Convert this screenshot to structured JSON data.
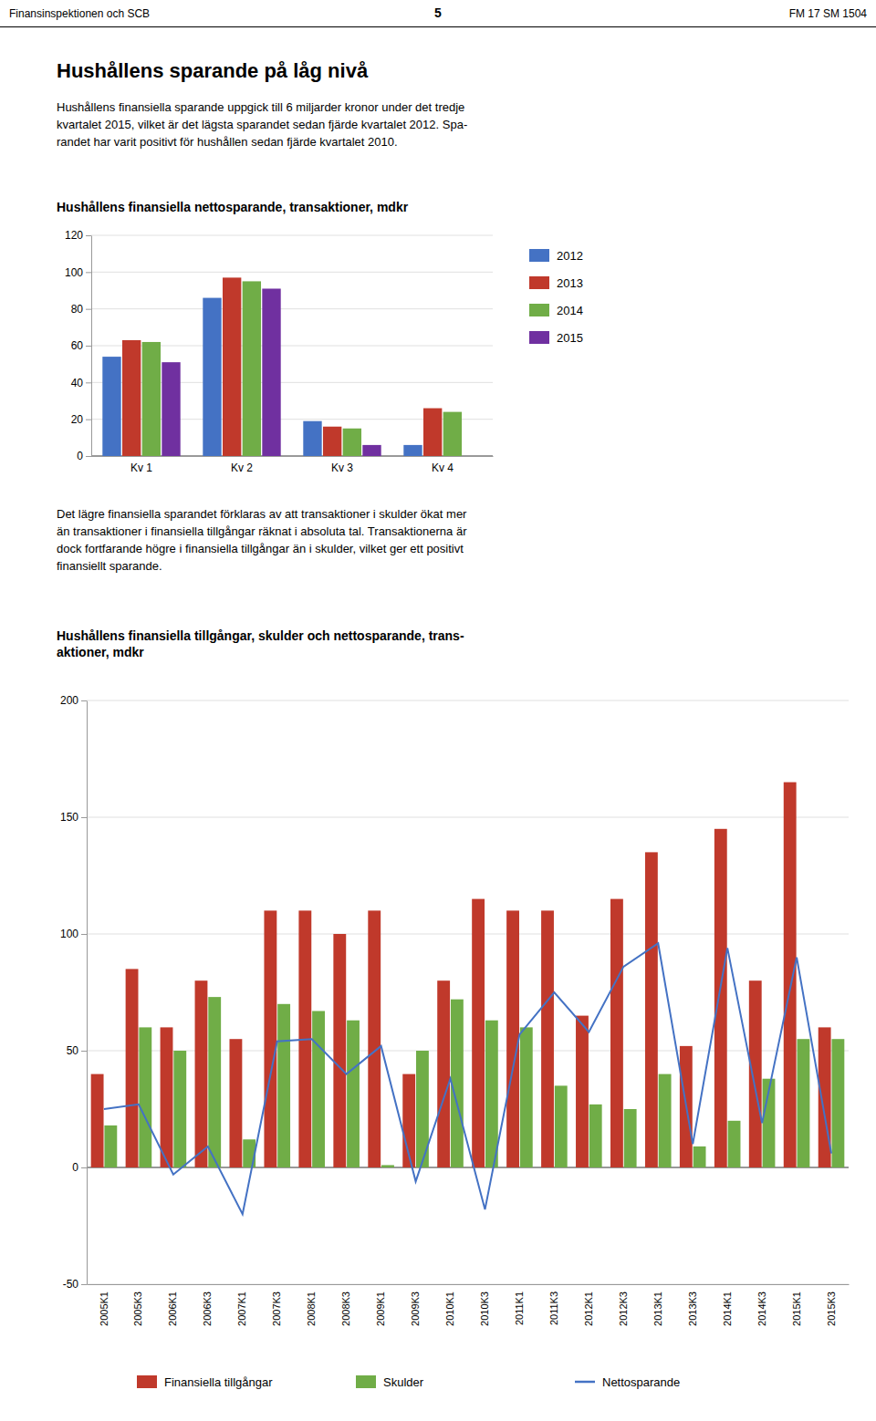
{
  "header": {
    "left": "Finansinspektionen och SCB",
    "center": "5",
    "right": "FM 17 SM 1504"
  },
  "section_title": "Hushållens sparande på låg nivå",
  "section_text": [
    "Hushållens finansiella sparande uppgick till 6 miljarder kronor under det tredje",
    "kvartalet 2015, vilket är det lägsta sparandet sedan fjärde kvartalet 2012. Spa-",
    "randet har varit positivt för hushållen sedan fjärde kvartalet 2010."
  ],
  "paragraph": [
    "Det lägre finansiella sparandet förklaras av att transaktioner i skulder ökat mer",
    "än transaktioner i finansiella tillgångar räknat i absoluta tal. Transaktionerna är",
    "dock fortfarande högre i finansiella tillgångar än i skulder, vilket ger ett positivt",
    "finansiellt sparande."
  ],
  "chart_data": [
    {
      "type": "bar",
      "title": "Hushållens finansiella nettosparande, transaktioner, mdkr",
      "categories": [
        "Kv 1",
        "Kv 2",
        "Kv 3",
        "Kv 4"
      ],
      "series": [
        {
          "name": "2012",
          "color": "#4472C4",
          "values": [
            54,
            86,
            19,
            6
          ]
        },
        {
          "name": "2013",
          "color": "#C0392B",
          "values": [
            63,
            97,
            16,
            26
          ]
        },
        {
          "name": "2014",
          "color": "#70AD47",
          "values": [
            62,
            95,
            15,
            24
          ]
        },
        {
          "name": "2015",
          "color": "#7030A0",
          "values": [
            51,
            91,
            6,
            null
          ]
        }
      ],
      "ylim": [
        0,
        120
      ],
      "yticks": [
        0,
        20,
        40,
        60,
        80,
        100,
        120
      ],
      "grid": true,
      "legend": "right"
    },
    {
      "type": "bar",
      "title": "Hushållens finansiella tillgångar, skulder och nettosparande, trans-\naktioner, mdkr",
      "categories": [
        "2005K1",
        "2005K3",
        "2006K1",
        "2006K3",
        "2007K1",
        "2007K3",
        "2008K1",
        "2008K3",
        "2009K1",
        "2009K3",
        "2010K1",
        "2010K3",
        "2011K1",
        "2011K3",
        "2012K1",
        "2012K3",
        "2013K1",
        "2013K3",
        "2014K1",
        "2014K3",
        "2015K1",
        "2015K3"
      ],
      "series": [
        {
          "name": "Finansiella tillgångar",
          "type": "bar",
          "color": "#C0392B",
          "values": [
            40,
            85,
            60,
            80,
            55,
            110,
            110,
            100,
            110,
            40,
            80,
            115,
            110,
            110,
            65,
            115,
            135,
            52,
            145,
            80,
            165,
            60
          ]
        },
        {
          "name": "Skulder",
          "type": "bar",
          "color": "#70AD47",
          "values": [
            18,
            60,
            50,
            73,
            12,
            70,
            67,
            63,
            1,
            50,
            72,
            63,
            60,
            35,
            27,
            25,
            40,
            9,
            20,
            38,
            55,
            55
          ]
        },
        {
          "name": "Nettosparande",
          "type": "line",
          "color": "#4472C4",
          "values": [
            25,
            27,
            -3,
            9,
            -20,
            54,
            55,
            40,
            52,
            -6,
            38,
            -18,
            57,
            75,
            58,
            86,
            96,
            10,
            94,
            19,
            90,
            6
          ]
        }
      ],
      "ylim": [
        -50,
        200
      ],
      "yticks": [
        -50,
        0,
        50,
        100,
        150,
        200
      ],
      "grid": true,
      "legend": "bottom"
    }
  ]
}
